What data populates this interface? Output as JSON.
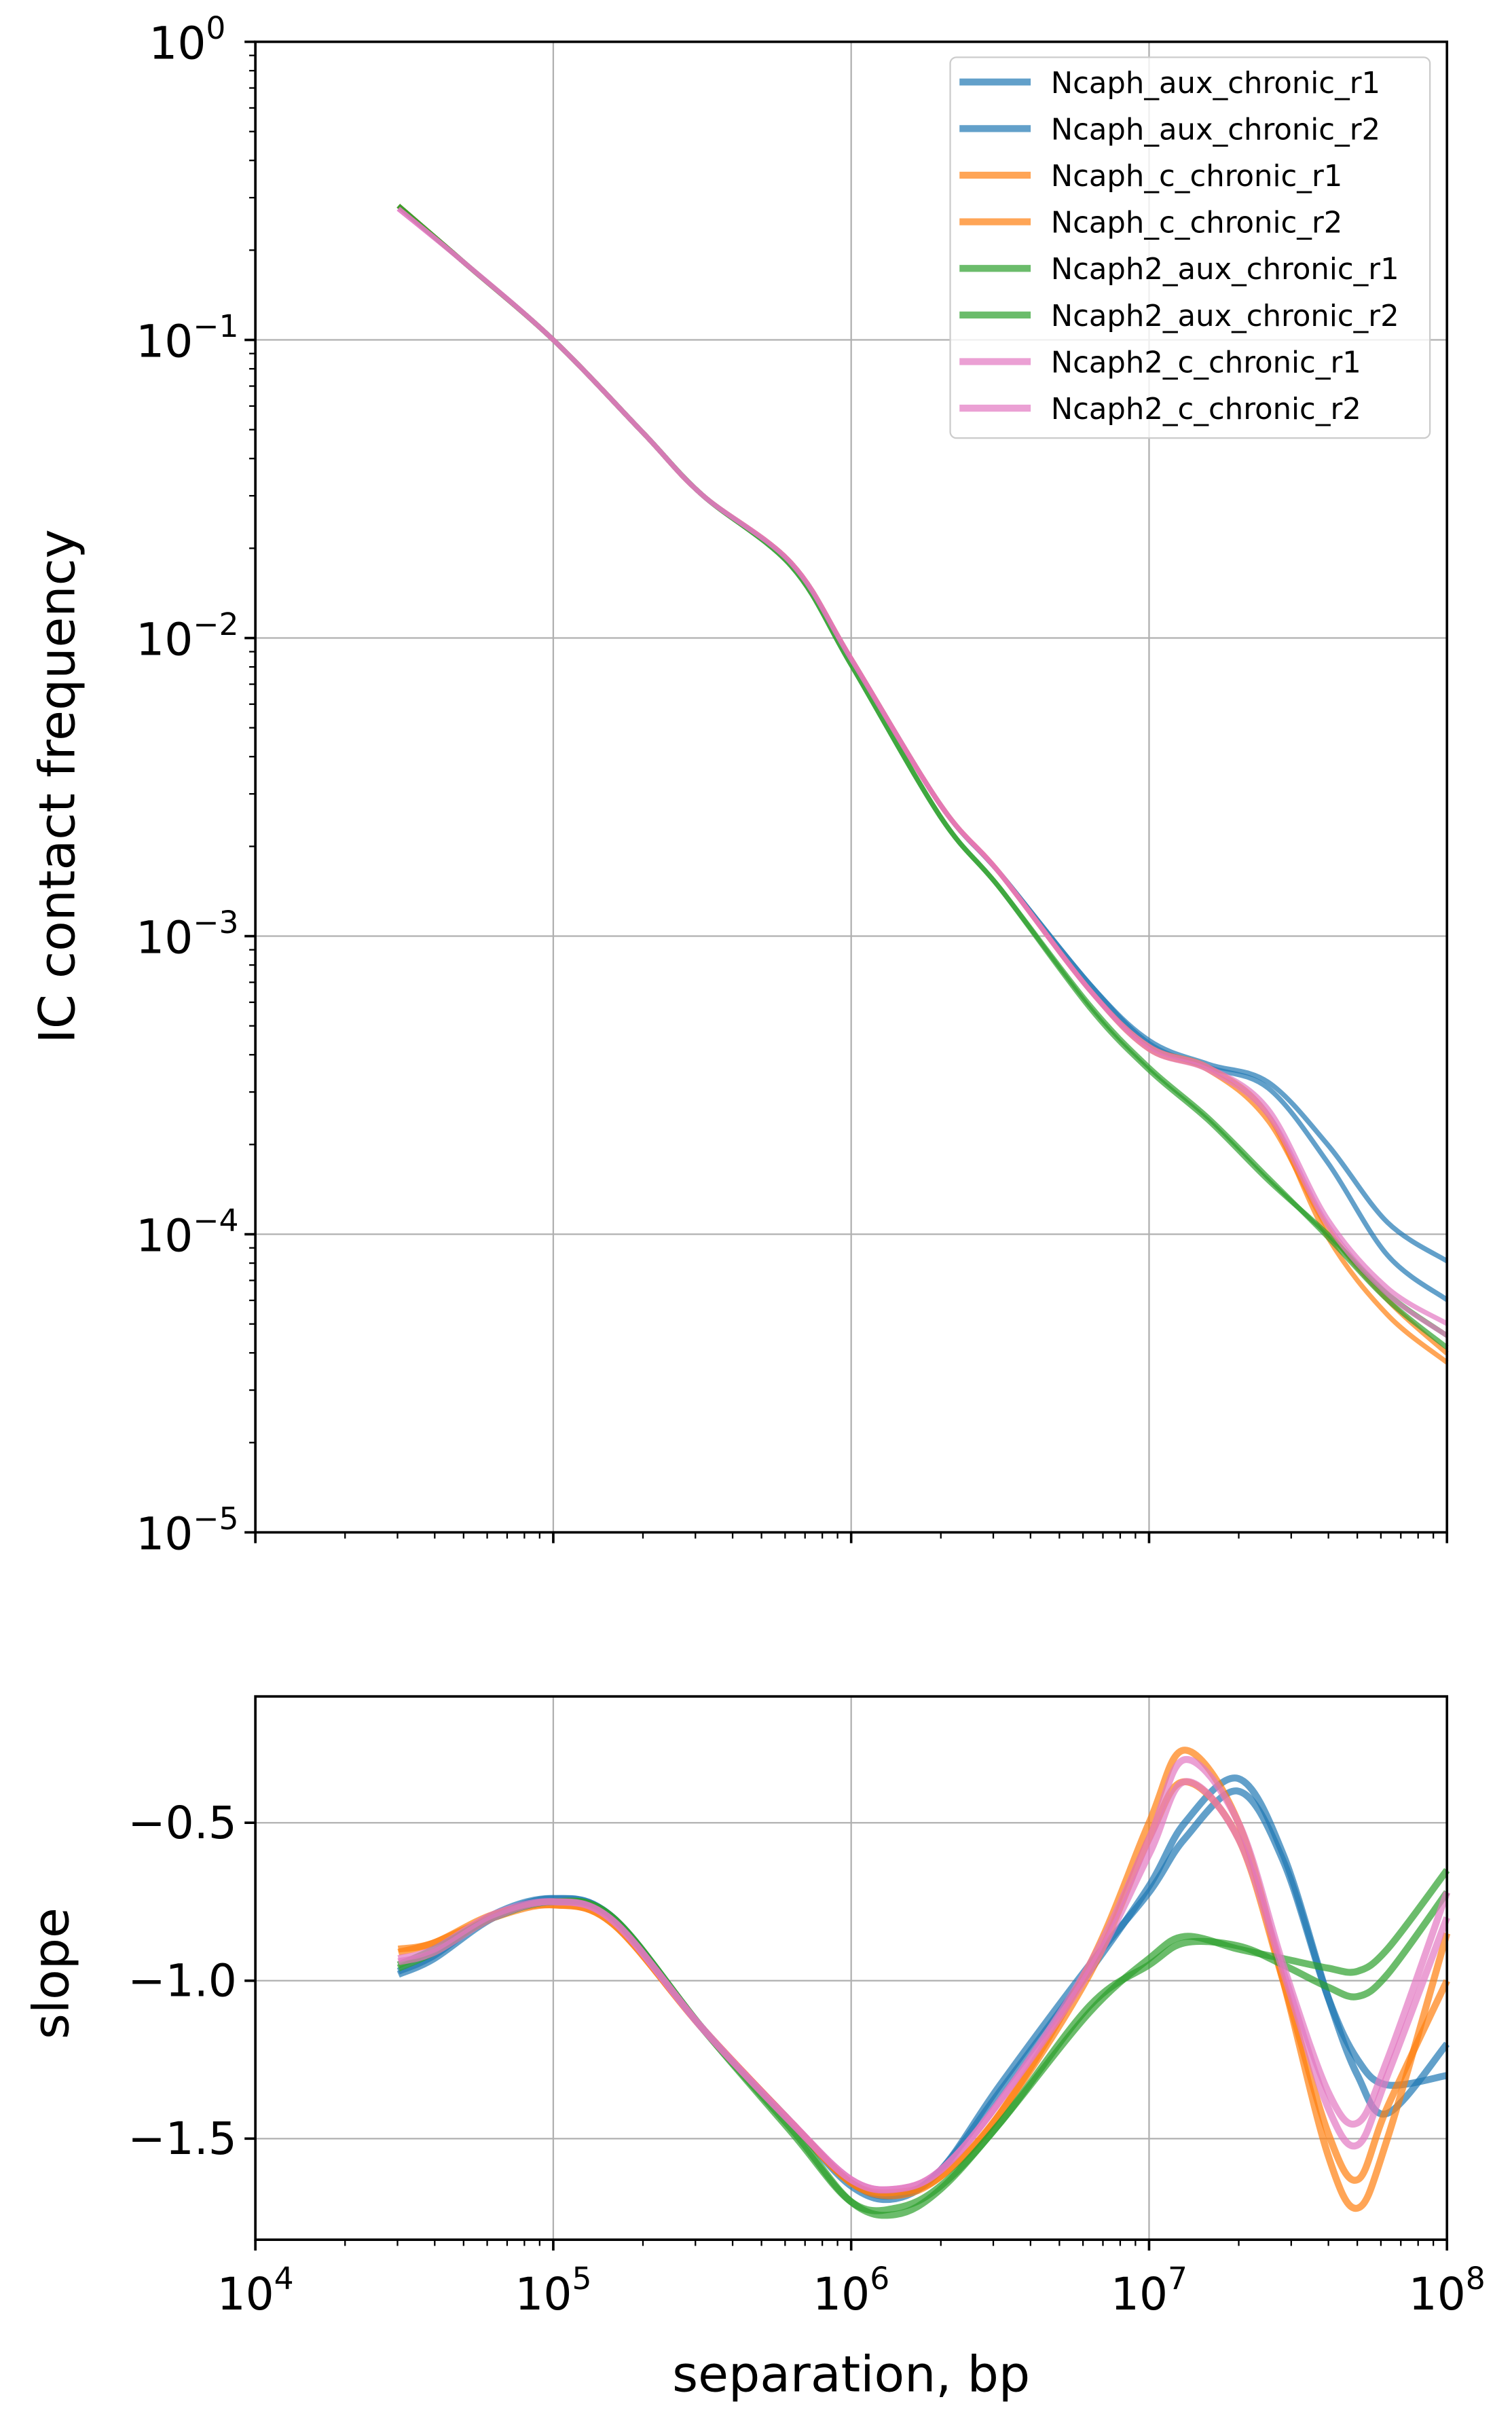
{
  "chart_data": [
    {
      "type": "line",
      "xscale": "log",
      "yscale": "log",
      "xlim": [
        10000,
        100000000
      ],
      "ylim": [
        1e-05,
        1
      ],
      "xlabel": "",
      "ylabel": "IC contact frequency",
      "y_tick_exponents": [
        "0",
        "−1",
        "−2",
        "−3",
        "−4",
        "−5"
      ],
      "y_tick_base": "10",
      "grid": true,
      "legend_position": "top-right",
      "x_log10": [
        4.48,
        4.7,
        5.0,
        5.3,
        5.5,
        5.8,
        6.0,
        6.3,
        6.5,
        6.8,
        7.0,
        7.2,
        7.4,
        7.6,
        7.8,
        8.0
      ],
      "series": [
        {
          "name": "Ncaph_aux_chronic_r1",
          "color": "#1f77b4",
          "y_log10": [
            -0.55,
            -0.74,
            -1.0,
            -1.31,
            -1.52,
            -1.75,
            -2.07,
            -2.56,
            -2.79,
            -3.16,
            -3.35,
            -3.43,
            -3.49,
            -3.7,
            -3.96,
            -4.09
          ]
        },
        {
          "name": "Ncaph_aux_chronic_r2",
          "color": "#1f77b4",
          "y_log10": [
            -0.55,
            -0.74,
            -1.0,
            -1.31,
            -1.52,
            -1.75,
            -2.07,
            -2.56,
            -2.79,
            -3.16,
            -3.36,
            -3.44,
            -3.51,
            -3.76,
            -4.07,
            -4.22
          ]
        },
        {
          "name": "Ncaph_c_chronic_r1",
          "color": "#ff7f0e",
          "y_log10": [
            -0.55,
            -0.74,
            -1.0,
            -1.31,
            -1.52,
            -1.75,
            -2.07,
            -2.56,
            -2.79,
            -3.18,
            -3.37,
            -3.44,
            -3.6,
            -4.01,
            -4.27,
            -4.43
          ]
        },
        {
          "name": "Ncaph_c_chronic_r2",
          "color": "#ff7f0e",
          "y_log10": [
            -0.55,
            -0.74,
            -1.0,
            -1.31,
            -1.52,
            -1.75,
            -2.07,
            -2.56,
            -2.79,
            -3.18,
            -3.38,
            -3.45,
            -3.62,
            -3.98,
            -4.22,
            -4.4
          ]
        },
        {
          "name": "Ncaph2_aux_chronic_r1",
          "color": "#2ca02c",
          "y_log10": [
            -0.55,
            -0.74,
            -1.0,
            -1.31,
            -1.52,
            -1.76,
            -2.09,
            -2.6,
            -2.84,
            -3.23,
            -3.44,
            -3.61,
            -3.81,
            -4.01,
            -4.22,
            -4.38
          ]
        },
        {
          "name": "Ncaph2_aux_chronic_r2",
          "color": "#2ca02c",
          "y_log10": [
            -0.55,
            -0.74,
            -1.0,
            -1.31,
            -1.52,
            -1.76,
            -2.09,
            -2.6,
            -2.84,
            -3.24,
            -3.45,
            -3.62,
            -3.82,
            -4.0,
            -4.2,
            -4.34
          ]
        },
        {
          "name": "Ncaph2_c_chronic_r1",
          "color": "#e377c2",
          "y_log10": [
            -0.56,
            -0.74,
            -1.0,
            -1.31,
            -1.52,
            -1.75,
            -2.07,
            -2.56,
            -2.79,
            -3.18,
            -3.37,
            -3.44,
            -3.58,
            -3.95,
            -4.18,
            -4.3
          ]
        },
        {
          "name": "Ncaph2_c_chronic_r2",
          "color": "#e377c2",
          "y_log10": [
            -0.56,
            -0.74,
            -1.0,
            -1.31,
            -1.52,
            -1.75,
            -2.07,
            -2.56,
            -2.79,
            -3.18,
            -3.38,
            -3.45,
            -3.6,
            -3.97,
            -4.2,
            -4.34
          ]
        }
      ]
    },
    {
      "type": "line",
      "xscale": "log",
      "xlim": [
        10000,
        100000000
      ],
      "ylim": [
        -1.82,
        -0.1
      ],
      "xlabel": "separation, bp",
      "ylabel": "slope",
      "x_tick_exponents": [
        "4",
        "5",
        "6",
        "7",
        "8"
      ],
      "x_tick_base": "10",
      "y_ticks": [
        -0.5,
        -1.0,
        -1.5
      ],
      "y_tick_labels": [
        "−0.5",
        "−1.0",
        "−1.5"
      ],
      "grid": true,
      "x_log10": [
        4.48,
        4.6,
        4.8,
        5.0,
        5.2,
        5.5,
        5.8,
        6.0,
        6.15,
        6.3,
        6.5,
        6.8,
        7.0,
        7.12,
        7.3,
        7.45,
        7.6,
        7.7,
        7.8,
        8.0
      ],
      "series": [
        {
          "name": "Ncaph_aux_chronic_r1",
          "color": "#1f77b4",
          "y": [
            -0.98,
            -0.93,
            -0.8,
            -0.74,
            -0.8,
            -1.15,
            -1.45,
            -1.65,
            -1.69,
            -1.6,
            -1.35,
            -0.97,
            -0.7,
            -0.5,
            -0.36,
            -0.6,
            -1.05,
            -1.3,
            -1.42,
            -1.2
          ]
        },
        {
          "name": "Ncaph_aux_chronic_r2",
          "color": "#1f77b4",
          "y": [
            -0.97,
            -0.92,
            -0.79,
            -0.74,
            -0.8,
            -1.15,
            -1.45,
            -1.64,
            -1.68,
            -1.6,
            -1.33,
            -0.95,
            -0.72,
            -0.55,
            -0.4,
            -0.62,
            -1.05,
            -1.25,
            -1.33,
            -1.3
          ]
        },
        {
          "name": "Ncaph_c_chronic_r1",
          "color": "#ff7f0e",
          "y": [
            -0.9,
            -0.88,
            -0.79,
            -0.76,
            -0.82,
            -1.15,
            -1.45,
            -1.64,
            -1.68,
            -1.62,
            -1.42,
            -0.95,
            -0.5,
            -0.27,
            -0.5,
            -1.0,
            -1.55,
            -1.72,
            -1.5,
            -0.85
          ]
        },
        {
          "name": "Ncaph_c_chronic_r2",
          "color": "#ff7f0e",
          "y": [
            -0.91,
            -0.88,
            -0.8,
            -0.76,
            -0.82,
            -1.15,
            -1.45,
            -1.64,
            -1.67,
            -1.62,
            -1.42,
            -0.98,
            -0.55,
            -0.37,
            -0.55,
            -1.0,
            -1.48,
            -1.63,
            -1.4,
            -1.0
          ]
        },
        {
          "name": "Ncaph2_aux_chronic_r1",
          "color": "#2ca02c",
          "y": [
            -0.95,
            -0.9,
            -0.8,
            -0.75,
            -0.8,
            -1.15,
            -1.47,
            -1.7,
            -1.74,
            -1.66,
            -1.45,
            -1.1,
            -0.93,
            -0.86,
            -0.9,
            -0.93,
            -0.96,
            -0.97,
            -0.9,
            -0.65
          ]
        },
        {
          "name": "Ncaph2_aux_chronic_r2",
          "color": "#2ca02c",
          "y": [
            -0.96,
            -0.91,
            -0.8,
            -0.75,
            -0.8,
            -1.15,
            -1.48,
            -1.7,
            -1.72,
            -1.65,
            -1.45,
            -1.08,
            -0.95,
            -0.88,
            -0.89,
            -0.95,
            -1.02,
            -1.05,
            -0.98,
            -0.72
          ]
        },
        {
          "name": "Ncaph2_c_chronic_r1",
          "color": "#e377c2",
          "y": [
            -0.93,
            -0.9,
            -0.79,
            -0.75,
            -0.81,
            -1.15,
            -1.45,
            -1.63,
            -1.66,
            -1.6,
            -1.38,
            -0.95,
            -0.55,
            -0.3,
            -0.5,
            -0.95,
            -1.35,
            -1.45,
            -1.25,
            -0.72
          ]
        },
        {
          "name": "Ncaph2_c_chronic_r2",
          "color": "#e377c2",
          "y": [
            -0.94,
            -0.91,
            -0.8,
            -0.75,
            -0.81,
            -1.15,
            -1.45,
            -1.63,
            -1.66,
            -1.6,
            -1.38,
            -0.97,
            -0.6,
            -0.37,
            -0.55,
            -0.97,
            -1.4,
            -1.52,
            -1.3,
            -0.8
          ]
        }
      ]
    }
  ]
}
